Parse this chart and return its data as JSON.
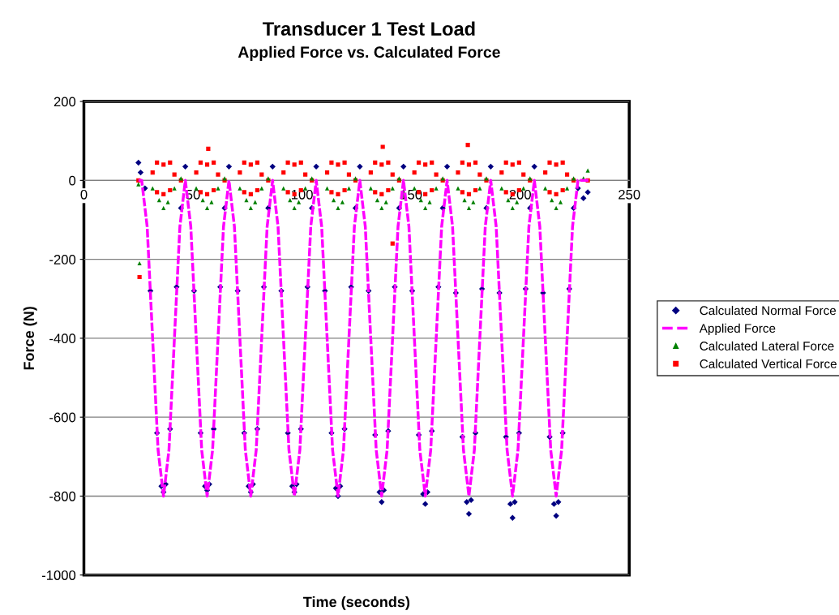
{
  "chart_data": {
    "type": "scatter",
    "title": "Transducer 1 Test Load",
    "subtitle": "Applied Force vs. Calculated Force",
    "xlabel": "Time (seconds)",
    "ylabel": "Force (N)",
    "xlim": [
      0,
      250
    ],
    "xticks": [
      0,
      50,
      100,
      150,
      200,
      250
    ],
    "ylim": [
      -1000,
      200
    ],
    "yticks": [
      -1000,
      -800,
      -600,
      -400,
      -200,
      0,
      200
    ],
    "grid": "y",
    "legend": "right",
    "series": [
      {
        "name": "Calculated Normal Force",
        "type": "scatter",
        "marker": "diamond",
        "color": "#000080",
        "x": [
          25,
          26,
          28,
          30.5,
          33.5,
          35.5,
          36.5,
          37.5,
          39.5,
          42.5,
          44.5,
          46.5,
          50.5,
          53.5,
          55.5,
          56.5,
          57.5,
          59.5,
          62.5,
          64.5,
          66.5,
          70.5,
          73.5,
          75.5,
          76.5,
          77.5,
          79.5,
          82.5,
          84.5,
          86.5,
          90.5,
          93.5,
          95.5,
          96.5,
          97.5,
          99.5,
          102.5,
          104.5,
          106.5,
          110.5,
          113.5,
          115.5,
          116.5,
          117.5,
          119.5,
          122.5,
          124.5,
          126.5,
          130.5,
          133.5,
          135.5,
          136.5,
          137.5,
          139.5,
          142.5,
          144.5,
          146.5,
          150.5,
          153.5,
          155.5,
          156.5,
          157.5,
          159.5,
          162.5,
          164.5,
          166.5,
          170.5,
          173.5,
          175.5,
          176.5,
          177.5,
          179.5,
          182.5,
          184.5,
          186.5,
          190.5,
          193.5,
          195.5,
          196.5,
          197.5,
          199.5,
          202.5,
          204.5,
          206.5,
          210.5,
          213.5,
          215.5,
          216.5,
          217.5,
          219.5,
          222.5,
          224.5,
          226.5,
          229,
          231
        ],
        "values": [
          45,
          20,
          -20,
          -280,
          -640,
          -775,
          -790,
          -770,
          -630,
          -270,
          -70,
          35,
          -280,
          -640,
          -775,
          -785,
          -770,
          -630,
          -270,
          -70,
          35,
          -280,
          -640,
          -775,
          -790,
          -770,
          -630,
          -270,
          -70,
          35,
          -280,
          -640,
          -775,
          -790,
          -770,
          -630,
          -270,
          -70,
          35,
          -280,
          -640,
          -780,
          -800,
          -775,
          -630,
          -270,
          -70,
          35,
          -280,
          -645,
          -790,
          -815,
          -785,
          -635,
          -270,
          -70,
          35,
          -280,
          -645,
          -795,
          -820,
          -790,
          -635,
          -270,
          -70,
          35,
          -285,
          -650,
          -815,
          -845,
          -810,
          -640,
          -275,
          -70,
          35,
          -285,
          -650,
          -820,
          -855,
          -815,
          -640,
          -275,
          -70,
          35,
          -285,
          -650,
          -820,
          -850,
          -815,
          -640,
          -275,
          -70,
          -20,
          -45,
          -30
        ]
      },
      {
        "name": "Applied Force",
        "type": "line",
        "line_style": "dashed",
        "marker": "none",
        "color": "#ff00ff",
        "x": [
          25,
          26.5,
          29,
          31.5,
          34,
          36.5,
          39,
          41.5,
          44,
          46.5,
          49,
          51.5,
          54,
          56.5,
          59,
          61.5,
          64,
          66.5,
          69,
          71.5,
          74,
          76.5,
          79,
          81.5,
          84,
          86.5,
          89,
          91.5,
          94,
          96.5,
          99,
          101.5,
          104,
          106.5,
          109,
          111.5,
          114,
          116.5,
          119,
          121.5,
          124,
          126.5,
          129,
          131.5,
          134,
          136.5,
          139,
          141.5,
          144,
          146.5,
          149,
          151.5,
          154,
          156.5,
          159,
          161.5,
          164,
          166.5,
          169,
          171.5,
          174,
          176.5,
          179,
          181.5,
          184,
          186.5,
          189,
          191.5,
          194,
          196.5,
          199,
          201.5,
          204,
          206.5,
          209,
          211.5,
          214,
          216.5,
          219,
          221.5,
          224,
          226.5,
          232
        ],
        "values": [
          0,
          0,
          -117,
          -400,
          -683,
          -800,
          -683,
          -400,
          -117,
          0,
          -117,
          -400,
          -683,
          -800,
          -683,
          -400,
          -117,
          0,
          -117,
          -400,
          -683,
          -800,
          -683,
          -400,
          -117,
          0,
          -117,
          -400,
          -683,
          -800,
          -683,
          -400,
          -117,
          0,
          -117,
          -400,
          -683,
          -800,
          -683,
          -400,
          -117,
          0,
          -117,
          -400,
          -683,
          -800,
          -683,
          -400,
          -117,
          0,
          -117,
          -400,
          -683,
          -800,
          -683,
          -400,
          -117,
          0,
          -117,
          -400,
          -683,
          -800,
          -683,
          -400,
          -117,
          0,
          -117,
          -400,
          -683,
          -800,
          -683,
          -400,
          -117,
          0,
          -117,
          -400,
          -683,
          -800,
          -683,
          -400,
          -117,
          0,
          0
        ]
      },
      {
        "name": "Calculated Lateral Force",
        "type": "scatter",
        "marker": "triangle",
        "color": "#008000",
        "x": [
          25,
          25.5,
          31.5,
          34.5,
          36.5,
          38.5,
          41.5,
          44.5,
          51.5,
          54.5,
          56.5,
          58.5,
          61.5,
          64.5,
          71.5,
          74.5,
          76.5,
          78.5,
          81.5,
          84.5,
          91.5,
          94.5,
          96.5,
          98.5,
          101.5,
          104.5,
          111.5,
          114.5,
          116.5,
          118.5,
          121.5,
          124.5,
          131.5,
          134.5,
          136.5,
          138.5,
          141.5,
          144.5,
          151.5,
          154.5,
          156.5,
          158.5,
          161.5,
          164.5,
          171.5,
          174.5,
          176.5,
          178.5,
          181.5,
          184.5,
          191.5,
          194.5,
          196.5,
          198.5,
          201.5,
          204.5,
          211.5,
          214.5,
          216.5,
          218.5,
          221.5,
          224.5,
          229,
          231
        ],
        "values": [
          -10,
          -210,
          -20,
          -50,
          -70,
          -55,
          -20,
          5,
          -20,
          -50,
          -70,
          -55,
          -20,
          5,
          -20,
          -50,
          -70,
          -55,
          -20,
          5,
          -20,
          -50,
          -70,
          -55,
          -20,
          5,
          -20,
          -50,
          -70,
          -55,
          -20,
          5,
          -20,
          -50,
          -70,
          -55,
          -20,
          5,
          -20,
          -50,
          -70,
          -55,
          -20,
          5,
          -20,
          -50,
          -70,
          -55,
          -20,
          5,
          -20,
          -50,
          -70,
          -55,
          -20,
          5,
          -20,
          -50,
          -70,
          -55,
          -20,
          5,
          5,
          25
        ]
      },
      {
        "name": "Calculated Vertical Force",
        "type": "scatter",
        "marker": "square",
        "color": "#ff0000",
        "x": [
          25,
          25.5,
          31.5,
          33.5,
          33.5,
          36.5,
          36.5,
          39.5,
          39.5,
          41.5,
          44.5,
          51.5,
          53.5,
          53.5,
          56.5,
          56.5,
          59.5,
          59.5,
          61.5,
          64.5,
          71.5,
          73.5,
          73.5,
          76.5,
          76.5,
          79.5,
          79.5,
          81.5,
          84.5,
          91.5,
          93.5,
          93.5,
          96.5,
          96.5,
          99.5,
          99.5,
          101.5,
          104.5,
          111.5,
          113.5,
          113.5,
          116.5,
          116.5,
          119.5,
          119.5,
          121.5,
          124.5,
          131.5,
          133.5,
          133.5,
          136.5,
          136.5,
          139.5,
          139.5,
          141.5,
          144.5,
          151.5,
          153.5,
          153.5,
          156.5,
          156.5,
          159.5,
          159.5,
          161.5,
          164.5,
          171.5,
          173.5,
          173.5,
          176.5,
          176.5,
          179.5,
          179.5,
          181.5,
          184.5,
          191.5,
          193.5,
          193.5,
          196.5,
          196.5,
          199.5,
          199.5,
          201.5,
          204.5,
          211.5,
          213.5,
          213.5,
          216.5,
          216.5,
          219.5,
          219.5,
          221.5,
          224.5,
          231,
          57,
          137,
          176,
          141.5
        ],
        "values": [
          0,
          -245,
          20,
          45,
          -30,
          40,
          -35,
          45,
          -25,
          15,
          0,
          20,
          45,
          -30,
          40,
          -35,
          45,
          -25,
          15,
          0,
          20,
          45,
          -30,
          40,
          -35,
          45,
          -25,
          15,
          0,
          20,
          45,
          -30,
          40,
          -35,
          45,
          -25,
          15,
          0,
          20,
          45,
          -30,
          40,
          -35,
          45,
          -25,
          15,
          0,
          20,
          45,
          -30,
          40,
          -35,
          45,
          -25,
          15,
          0,
          20,
          45,
          -30,
          40,
          -35,
          45,
          -25,
          15,
          0,
          20,
          45,
          -30,
          40,
          -35,
          45,
          -25,
          15,
          0,
          20,
          45,
          -30,
          40,
          -35,
          45,
          -25,
          15,
          0,
          20,
          45,
          -30,
          40,
          -35,
          45,
          -25,
          15,
          0,
          0,
          80,
          85,
          90,
          -160
        ]
      }
    ]
  }
}
